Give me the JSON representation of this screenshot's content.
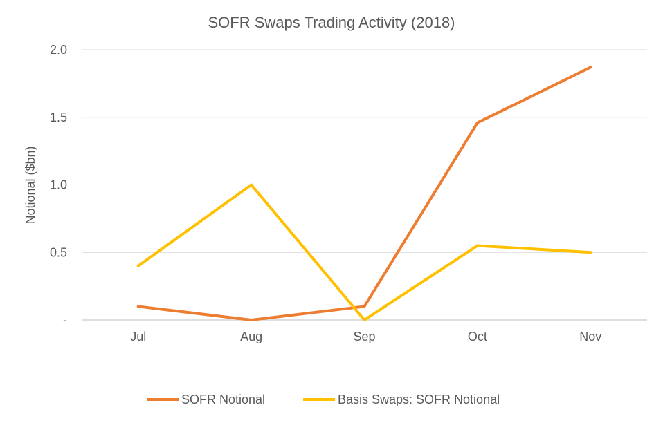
{
  "chart_data": {
    "type": "line",
    "title": "SOFR Swaps Trading Activity (2018)",
    "xlabel": "",
    "ylabel": "Notional ($bn)",
    "categories": [
      "Jul",
      "Aug",
      "Sep",
      "Oct",
      "Nov"
    ],
    "ylim": [
      0,
      2.0
    ],
    "yticks": [
      0,
      0.5,
      1.0,
      1.5,
      2.0
    ],
    "ytick_labels": [
      "-",
      "0.5",
      "1.0",
      "1.5",
      "2.0"
    ],
    "grid": true,
    "legend_position": "bottom",
    "series": [
      {
        "name": "SOFR Notional",
        "color": "#ED7D31",
        "values": [
          0.1,
          0.0,
          0.1,
          1.46,
          1.87
        ]
      },
      {
        "name": "Basis Swaps: SOFR Notional",
        "color": "#FFC000",
        "values": [
          0.4,
          1.0,
          0.0,
          0.55,
          0.5
        ]
      }
    ]
  }
}
